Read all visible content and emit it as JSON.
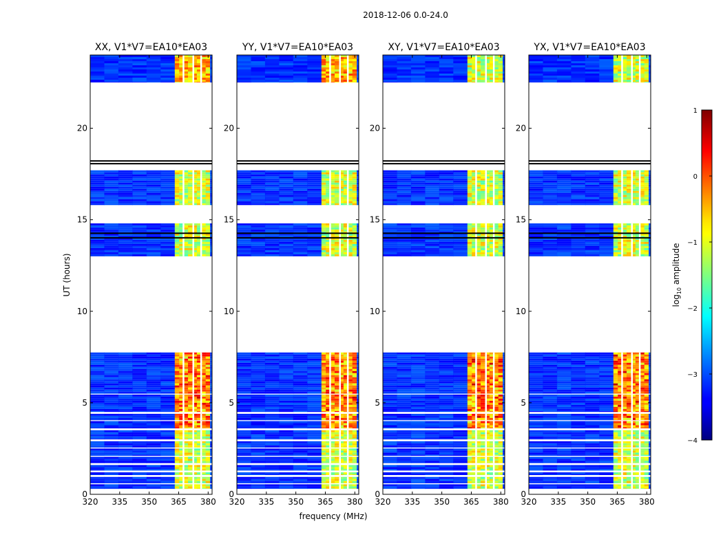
{
  "chart_data": {
    "type": "heatmap",
    "suptitle": "2018-12-06 0.0-24.0",
    "xlabel": "frequency (MHz)",
    "ylabel": "UT (hours)",
    "xlim": [
      320,
      382
    ],
    "ylim": [
      0,
      24
    ],
    "xticks": [
      320,
      335,
      350,
      365,
      380
    ],
    "yticks": [
      0,
      5,
      10,
      15,
      20
    ],
    "panels": [
      {
        "title": "XX, V1*V7=EA10*EA03",
        "show_ylabels": true
      },
      {
        "title": "YY, V1*V7=EA10*EA03",
        "show_ylabels": true
      },
      {
        "title": "XY, V1*V7=EA10*EA03",
        "show_ylabels": true
      },
      {
        "title": "YX, V1*V7=EA10*EA03",
        "show_ylabels": true
      }
    ],
    "data_blocks_ut_hours": [
      [
        0.3,
        0.55
      ],
      [
        0.6,
        0.95
      ],
      [
        1.05,
        1.2
      ],
      [
        1.3,
        1.6
      ],
      [
        1.7,
        2.05
      ],
      [
        2.1,
        2.5
      ],
      [
        2.55,
        2.9
      ],
      [
        3.0,
        3.5
      ],
      [
        3.6,
        4.0
      ],
      [
        4.05,
        4.4
      ],
      [
        4.5,
        5.45
      ],
      [
        5.5,
        7.75
      ],
      [
        13.0,
        14.8
      ],
      [
        15.8,
        17.7
      ],
      [
        22.5,
        24.0
      ]
    ],
    "blank_hours": [
      [
        7.75,
        13.0
      ],
      [
        18.3,
        22.5
      ]
    ],
    "rfi_band_mhz": [
      363,
      381
    ],
    "rfi_channels_mhz": [
      367,
      372,
      376
    ],
    "colorbar": {
      "label": "log10 amplitude",
      "label_base": "log",
      "label_sub": "10",
      "label_rest": " amplitude",
      "range": [
        -4,
        1
      ],
      "ticks": [
        1,
        0,
        -1,
        -2,
        -3,
        -4
      ],
      "tick_labels": [
        "1",
        "0",
        "−1",
        "−2",
        "−3",
        "−4"
      ],
      "colormap": "jet"
    }
  }
}
